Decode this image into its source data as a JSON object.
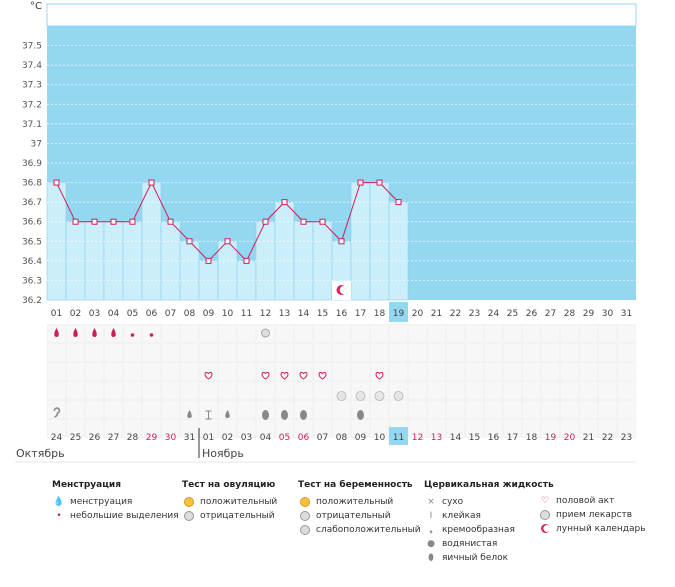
{
  "chart_data": {
    "type": "line",
    "ylabel": "°C",
    "ylim": [
      36.2,
      37.6
    ],
    "y_ticks": [
      "36.2",
      "36.3",
      "36.4",
      "36.5",
      "36.6",
      "36.7",
      "36.8",
      "36.9",
      "37",
      "37.1",
      "37.2",
      "37.3",
      "37.4",
      "37.5",
      "°C"
    ],
    "cycle_days": [
      "01",
      "02",
      "03",
      "04",
      "05",
      "06",
      "07",
      "08",
      "09",
      "10",
      "11",
      "12",
      "13",
      "14",
      "15",
      "16",
      "17",
      "18",
      "19",
      "20",
      "21",
      "22",
      "23",
      "24",
      "25",
      "26",
      "27",
      "28",
      "29",
      "30",
      "31"
    ],
    "current_cycle_day": "19",
    "temperatures": [
      36.8,
      36.6,
      36.6,
      36.6,
      36.6,
      36.8,
      36.6,
      36.5,
      36.4,
      36.5,
      36.4,
      36.6,
      36.7,
      36.6,
      36.6,
      36.5,
      36.8,
      36.8,
      36.7
    ],
    "calendar_dates": [
      {
        "day": "24",
        "weekend": false
      },
      {
        "day": "25",
        "weekend": false
      },
      {
        "day": "26",
        "weekend": false
      },
      {
        "day": "27",
        "weekend": false
      },
      {
        "day": "28",
        "weekend": false
      },
      {
        "day": "29",
        "weekend": true
      },
      {
        "day": "30",
        "weekend": true
      },
      {
        "day": "31",
        "weekend": false
      },
      {
        "day": "01",
        "weekend": false
      },
      {
        "day": "02",
        "weekend": false
      },
      {
        "day": "03",
        "weekend": false
      },
      {
        "day": "04",
        "weekend": false
      },
      {
        "day": "05",
        "weekend": true
      },
      {
        "day": "06",
        "weekend": true
      },
      {
        "day": "07",
        "weekend": false
      },
      {
        "day": "08",
        "weekend": false
      },
      {
        "day": "09",
        "weekend": false
      },
      {
        "day": "10",
        "weekend": false
      },
      {
        "day": "11",
        "weekend": false
      },
      {
        "day": "12",
        "weekend": true
      },
      {
        "day": "13",
        "weekend": true
      },
      {
        "day": "14",
        "weekend": false
      },
      {
        "day": "15",
        "weekend": false
      },
      {
        "day": "16",
        "weekend": false
      },
      {
        "day": "17",
        "weekend": false
      },
      {
        "day": "18",
        "weekend": false
      },
      {
        "day": "19",
        "weekend": true
      },
      {
        "day": "20",
        "weekend": true
      },
      {
        "day": "21",
        "weekend": false
      },
      {
        "day": "22",
        "weekend": false
      },
      {
        "day": "23",
        "weekend": false
      }
    ],
    "current_calendar_day": "11",
    "months": [
      "Октябрь",
      "Ноябрь"
    ],
    "markers": {
      "menstruation_days": [
        1,
        2,
        3,
        4
      ],
      "light_discharge_days": [
        5,
        6
      ],
      "ovulation_test_negative_days": [
        12
      ],
      "intercourse_days": [
        9,
        12,
        13,
        14,
        15,
        18
      ],
      "pregnancy_test_negative_days": [
        16,
        17,
        18,
        19
      ],
      "cervical_creamy_days": [
        1
      ],
      "cervical_watery_days": [
        8,
        10
      ],
      "cervical_sticky_days": [
        9
      ],
      "cervical_eggwhite_days": [
        12,
        13,
        14,
        17
      ],
      "lunar_calendar_days": [
        16
      ]
    }
  },
  "legend": {
    "menstruation": {
      "title": "Менструация",
      "items": [
        "менструация",
        "небольшие выделения"
      ]
    },
    "ovulation_test": {
      "title": "Тест на овуляцию",
      "items": [
        "положительный",
        "отрицательный"
      ]
    },
    "pregnancy_test": {
      "title": "Тест на беременность",
      "items": [
        "положительный",
        "отрицательный",
        "слабоположительный"
      ]
    },
    "cervical_fluid": {
      "title": "Цервикальная жидкость",
      "items": [
        "сухо",
        "клейкая",
        "кремообразная",
        "водянистая",
        "яичный белок"
      ]
    },
    "other": {
      "items": [
        "половой акт",
        "прием лекарств",
        "лунный календарь"
      ]
    }
  }
}
